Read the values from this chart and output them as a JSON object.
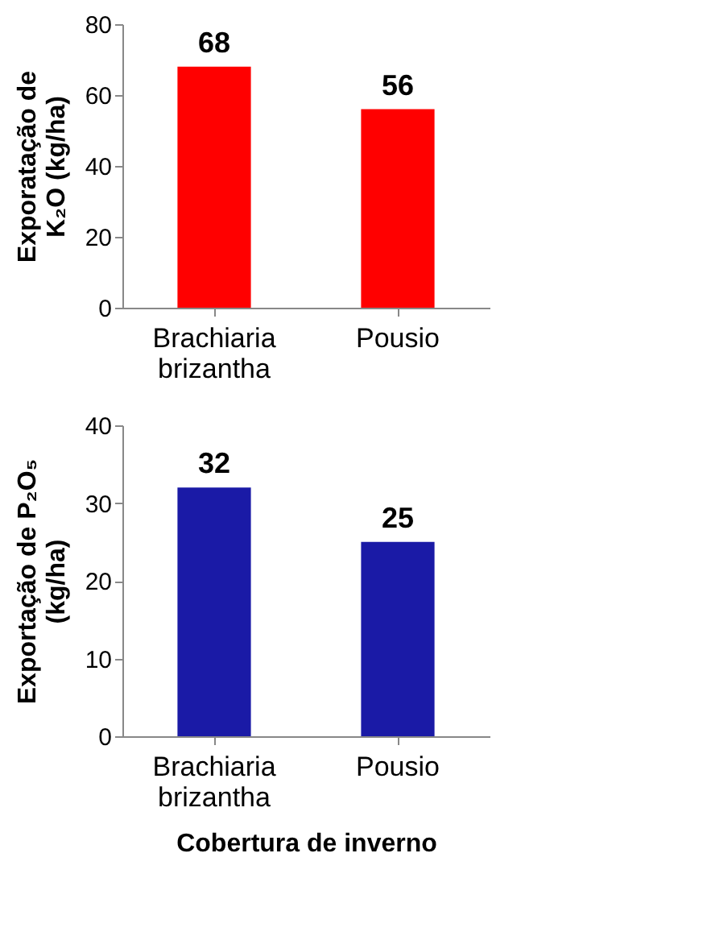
{
  "chart_data": [
    {
      "type": "bar",
      "ylabel": "Exporatação de\nK₂O (kg/ha)",
      "categories": [
        "Brachiaria brizantha",
        "Pousio"
      ],
      "values": [
        68,
        56
      ],
      "color": "#ff0000",
      "ylim": [
        0,
        80
      ],
      "yticks": [
        0,
        20,
        40,
        60,
        80
      ],
      "data_labels": true,
      "grid": false
    },
    {
      "type": "bar",
      "ylabel": "Exportação de P₂O₅\n(kg/ha)",
      "xlabel": "Cobertura de inverno",
      "categories": [
        "Brachiaria brizantha",
        "Pousio"
      ],
      "values": [
        32,
        25
      ],
      "color": "#1a1aa6",
      "ylim": [
        0,
        40
      ],
      "yticks": [
        0,
        10,
        20,
        30,
        40
      ],
      "data_labels": true,
      "grid": false
    }
  ]
}
